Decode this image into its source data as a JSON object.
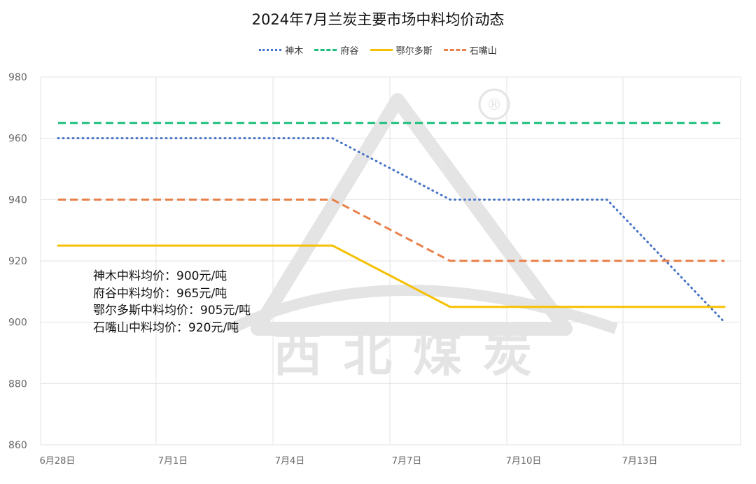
{
  "chart_data": {
    "type": "line",
    "title": "2024年7月兰炭主要市场中料均价动态",
    "x": [
      "6月28日",
      "7月5日",
      "7月8日",
      "7月12日",
      "7月15日"
    ],
    "x_ticks": [
      "6月28日",
      "7月1日",
      "7月4日",
      "7月7日",
      "7月10日",
      "7月13日"
    ],
    "series": [
      {
        "name": "神木",
        "color": "#4472C4",
        "style": "dotted",
        "values": [
          960,
          960,
          940,
          940,
          900
        ]
      },
      {
        "name": "府谷",
        "color": "#1DBF7C",
        "style": "dashed",
        "values": [
          965,
          965,
          965,
          965,
          965
        ]
      },
      {
        "name": "鄂尔多斯",
        "color": "#F5C000",
        "style": "solid",
        "values": [
          925,
          925,
          905,
          905,
          905
        ]
      },
      {
        "name": "石嘴山",
        "color": "#E8804A",
        "style": "dashed",
        "values": [
          940,
          940,
          920,
          920,
          920
        ]
      }
    ],
    "ylim": [
      860,
      980
    ],
    "y_ticks": [
      "860",
      "880",
      "900",
      "920",
      "940",
      "960",
      "980"
    ],
    "xlabel": "",
    "ylabel": "",
    "grid": true,
    "legend_position": "top-center",
    "annotations": [
      "神木中料均价：900元/吨",
      "府谷中料均价：965元/吨",
      "鄂尔多斯中料均价：905元/吨",
      "石嘴山中料均价：920元/吨"
    ],
    "watermark": {
      "text": "西北煤炭",
      "registered_mark": "®"
    }
  }
}
